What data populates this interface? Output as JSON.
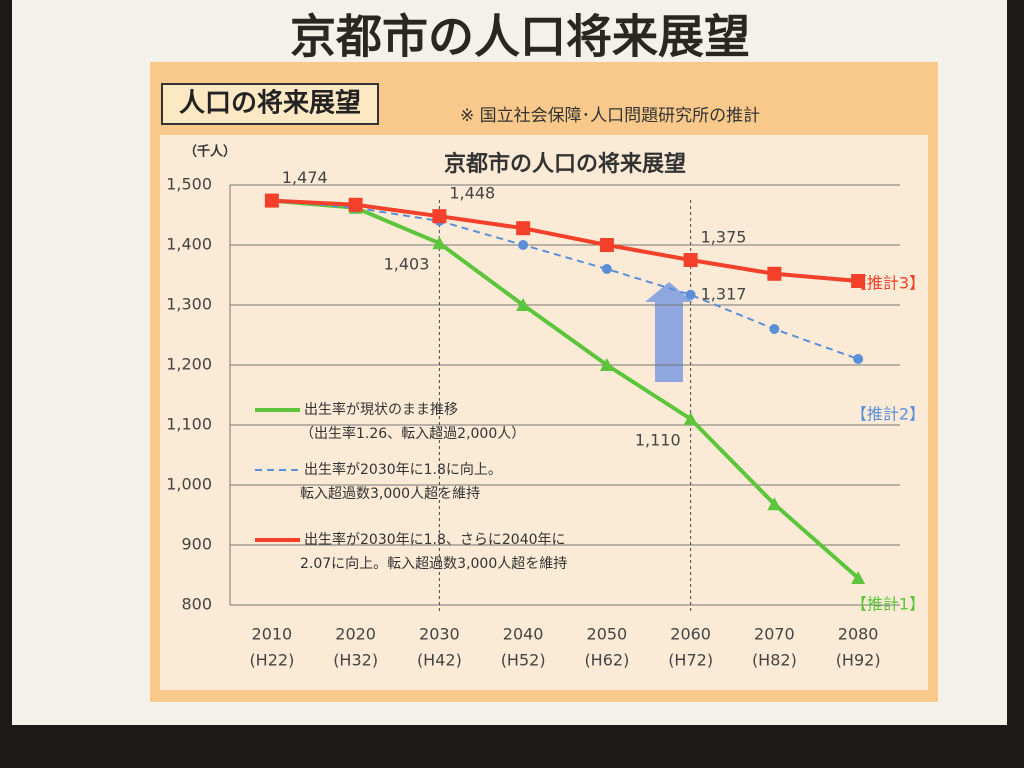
{
  "slide_title": "京都市の人口将来展望",
  "panel_label": "人口の将来展望",
  "source_note": "※ 国立社会保障･人口問題研究所の推計",
  "chart_data": {
    "type": "line",
    "title": "京都市の人口の将来展望",
    "y_unit": "（千人）",
    "categories": [
      "2010",
      "2020",
      "2030",
      "2040",
      "2050",
      "2060",
      "2070",
      "2080"
    ],
    "category_sublabels": [
      "(H22)",
      "(H32)",
      "(H42)",
      "(H52)",
      "(H62)",
      "(H72)",
      "(H82)",
      "(H92)"
    ],
    "reference_categories": [
      "2030",
      "2060"
    ],
    "ylim": [
      800,
      1500
    ],
    "yticks": [
      800,
      900,
      {
        "value": 1000,
        "label": "1,000"
      },
      {
        "value": 1100,
        "label": "1,100"
      },
      {
        "value": 1200,
        "label": "1,200"
      },
      {
        "value": 1300,
        "label": "1,300"
      },
      {
        "value": 1400,
        "label": "1,400"
      },
      {
        "value": 1500,
        "label": "1,500"
      }
    ],
    "grid": true,
    "series": [
      {
        "name": "出生率が現状のまま推移",
        "name_line2": "（出生率1.26、転入超過2,000人）",
        "tag": "【推計1】",
        "color": "#5cc53c",
        "marker": "triangle",
        "dashed": false,
        "values": [
          1474,
          1462,
          1403,
          1300,
          1200,
          1110,
          968,
          845
        ],
        "value_labels": [
          null,
          null,
          "1,403",
          null,
          null,
          "1,110",
          null,
          null
        ]
      },
      {
        "name": "出生率が2030年に1.8に向上。",
        "name_line2": "転入超過数3,000人超を維持",
        "tag": "【推計2】",
        "color": "#5b8fd8",
        "marker": "circle",
        "dashed": true,
        "values": [
          1474,
          1462,
          1440,
          1400,
          1360,
          1317,
          1260,
          1210
        ],
        "value_labels": [
          null,
          null,
          null,
          null,
          null,
          "1,317",
          null,
          null
        ]
      },
      {
        "name": "出生率が2030年に1.8、さらに2040年に",
        "name_line2": "2.07に向上。転入超過数3,000人超を維持",
        "tag": "【推計3】",
        "color": "#f2402a",
        "marker": "square",
        "dashed": false,
        "values": [
          1474,
          1467,
          1448,
          1428,
          1400,
          1375,
          1352,
          1340
        ],
        "value_labels": [
          "1,474",
          null,
          "1,448",
          null,
          null,
          "1,375",
          null,
          null
        ]
      }
    ]
  }
}
